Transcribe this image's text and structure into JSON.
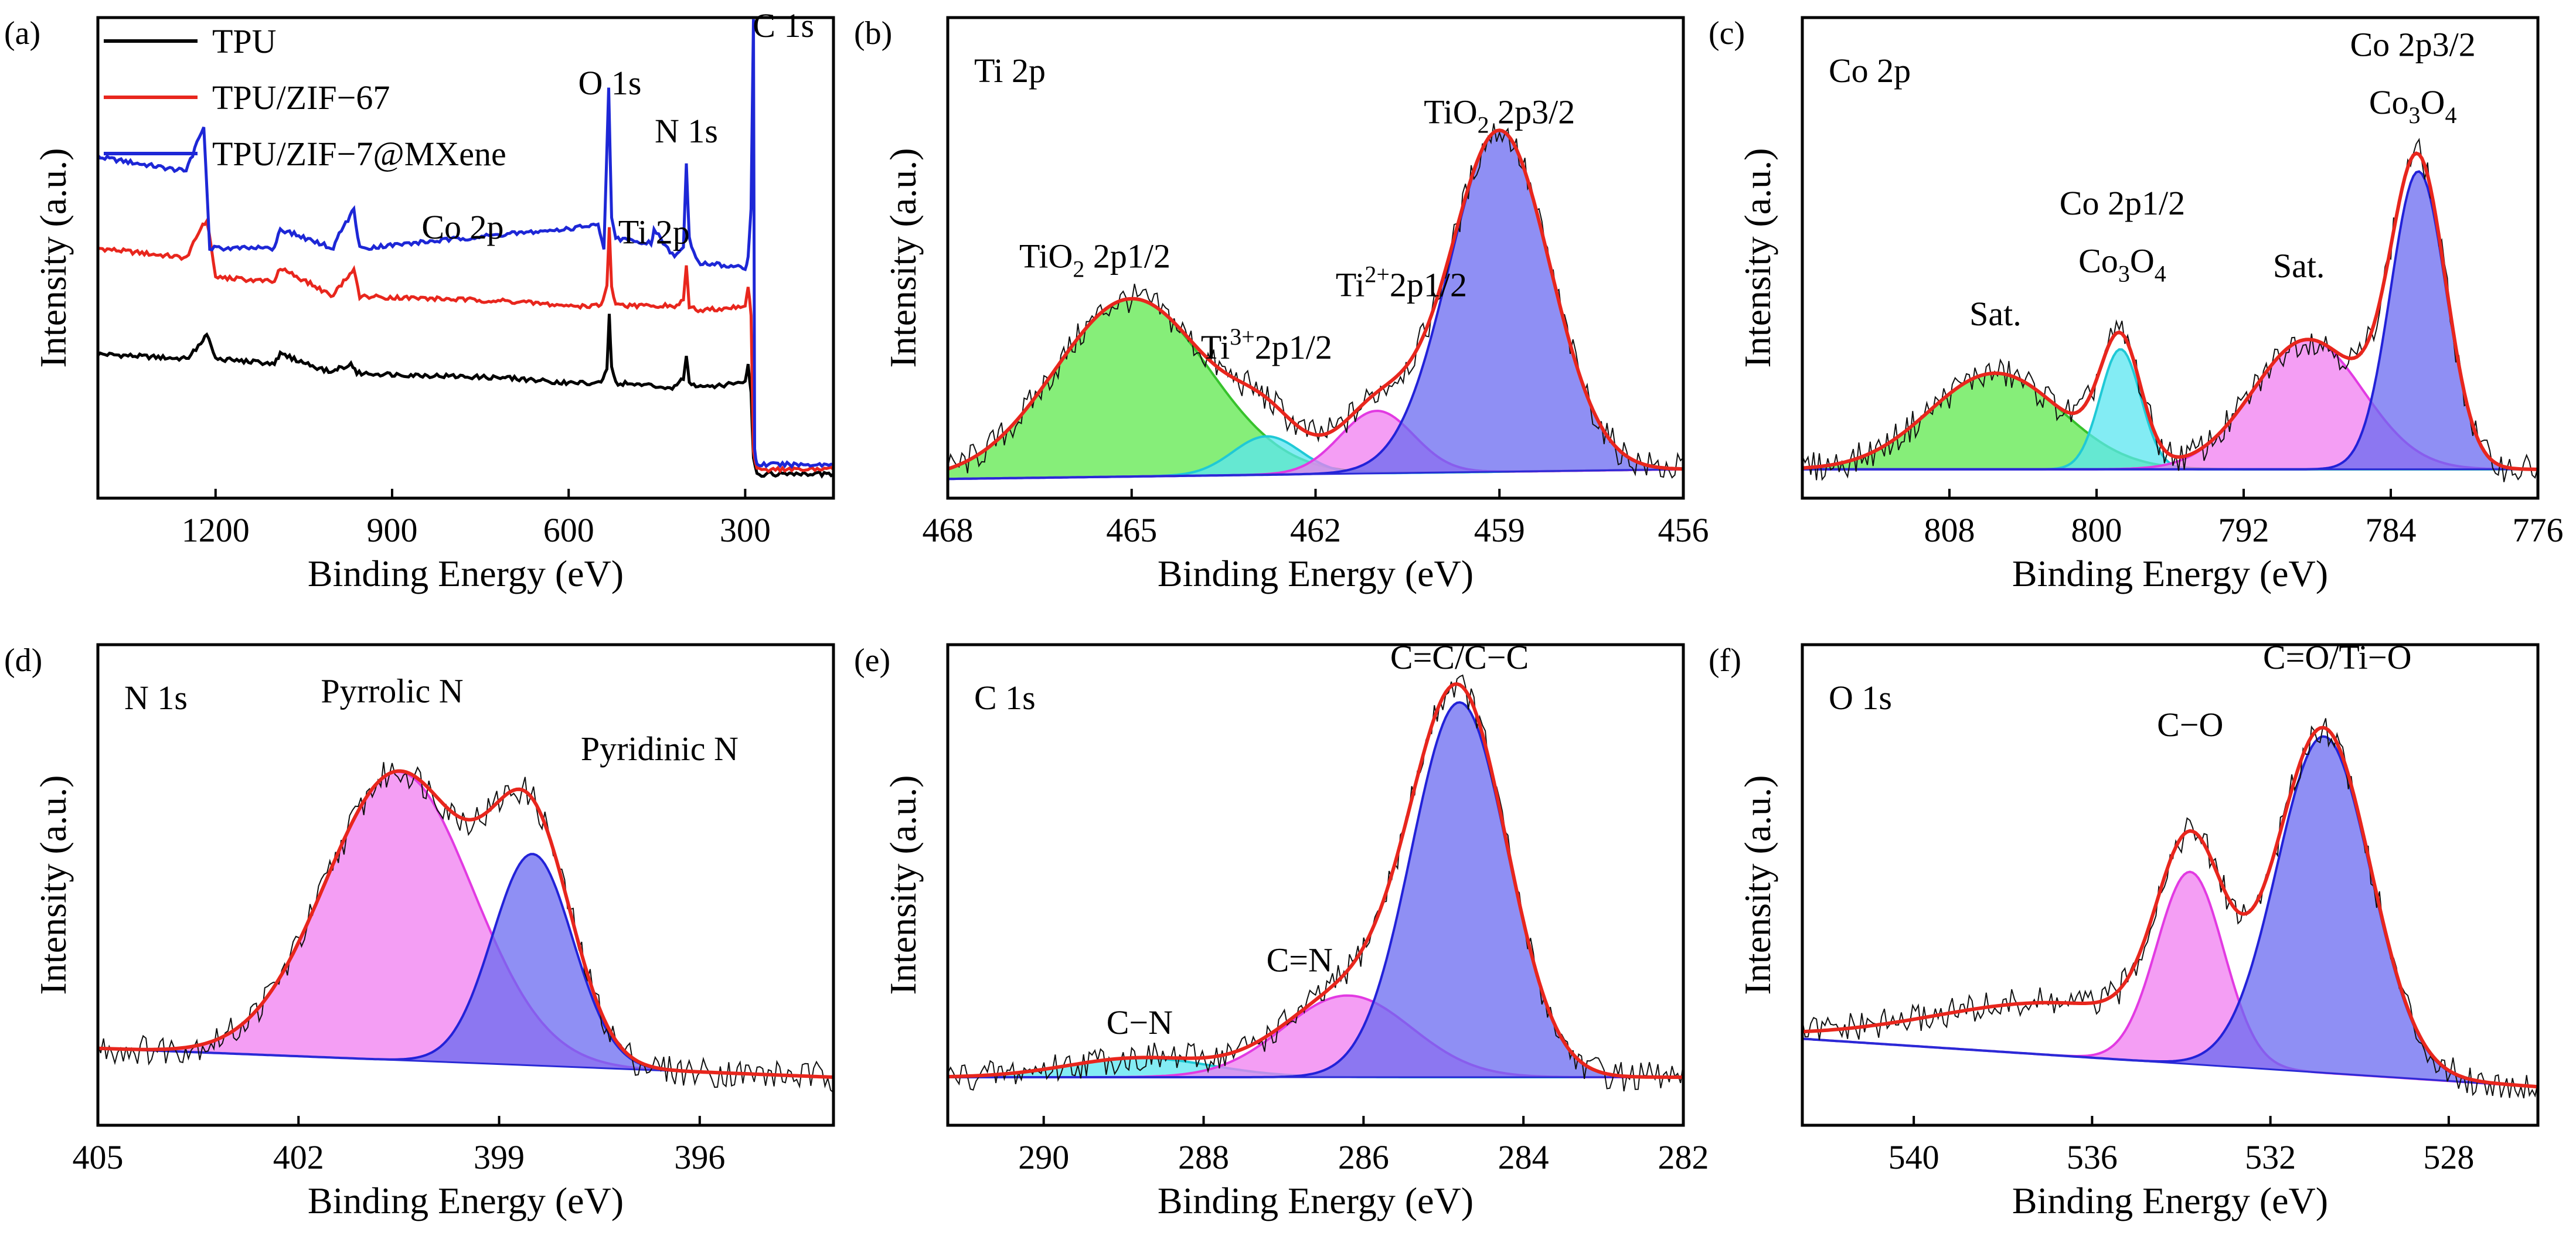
{
  "figure": {
    "description_free": true
  },
  "chart_data": [
    {
      "id": "a",
      "type": "line",
      "panel_label": "(a)",
      "xlabel": "Binding Energy (eV)",
      "ylabel": "Intensity (a.u.)",
      "xlim": [
        1400,
        150
      ],
      "ylim": [
        0,
        100
      ],
      "xticks": [
        1200,
        900,
        600,
        300
      ],
      "xtick_labels": [
        "1200",
        "900",
        "600",
        "300"
      ],
      "legend": {
        "placement": "top-left",
        "entries": [
          {
            "label": "TPU",
            "color": "#000000"
          },
          {
            "label": "TPU/ZIF−67",
            "color": "#e8261d"
          },
          {
            "label": "TPU/ZIF−7@MXene",
            "color": "#1d27d6"
          }
        ]
      },
      "annotations": [
        {
          "text": "Co 2p",
          "x": 780,
          "y": 54
        },
        {
          "text": "O 1s",
          "x": 530,
          "y": 84
        },
        {
          "text": "Ti 2p",
          "x": 455,
          "y": 53
        },
        {
          "text": "N 1s",
          "x": 400,
          "y": 74
        },
        {
          "text": "C 1s",
          "x": 235,
          "y": 96
        }
      ],
      "series": [
        {
          "name": "TPU",
          "color": "#000000",
          "x": [
            1400,
            1250,
            1225,
            1215,
            1200,
            1100,
            1090,
            1000,
            990,
            970,
            960,
            700,
            600,
            545,
            535,
            531,
            527,
            520,
            420,
            405,
            400,
            395,
            380,
            300,
            295,
            290,
            286,
            280,
            150
          ],
          "y": [
            30,
            29,
            32,
            34,
            29,
            28,
            30,
            26,
            27,
            28,
            26,
            25,
            24,
            24,
            27,
            38,
            27,
            24,
            23,
            25,
            30,
            24,
            23,
            24,
            28,
            22,
            8,
            5,
            5
          ]
        },
        {
          "name": "TPU/ZIF−67",
          "color": "#e8261d",
          "x": [
            1400,
            1250,
            1225,
            1215,
            1200,
            1100,
            1090,
            1000,
            990,
            975,
            965,
            955,
            700,
            600,
            545,
            535,
            531,
            527,
            520,
            420,
            405,
            400,
            395,
            380,
            300,
            295,
            290,
            286,
            280,
            150
          ],
          "y": [
            52,
            50,
            56,
            58,
            46,
            45,
            48,
            42,
            44,
            46,
            48,
            42,
            41,
            40,
            40,
            44,
            56,
            44,
            40,
            40,
            41,
            48,
            40,
            39,
            40,
            44,
            38,
            10,
            6,
            6
          ]
        },
        {
          "name": "TPU/ZIF−7@MXene",
          "color": "#1d27d6",
          "x": [
            1400,
            1250,
            1228,
            1220,
            1210,
            1100,
            1090,
            1000,
            990,
            975,
            965,
            955,
            700,
            600,
            550,
            540,
            532,
            527,
            520,
            460,
            455,
            420,
            405,
            400,
            395,
            380,
            300,
            295,
            290,
            286,
            284,
            280,
            150
          ],
          "y": [
            71,
            68,
            75,
            77,
            52,
            52,
            56,
            52,
            55,
            58,
            60,
            52,
            55,
            56,
            57,
            52,
            85,
            58,
            54,
            53,
            56,
            50,
            52,
            70,
            54,
            49,
            48,
            50,
            60,
            100,
            10,
            7,
            7
          ]
        }
      ]
    },
    {
      "id": "b",
      "type": "area",
      "panel_label": "(b)",
      "title": "Ti 2p",
      "xlabel": "Binding Energy (eV)",
      "ylabel": "Intensity (a.u.)",
      "xlim": [
        468,
        456
      ],
      "ylim": [
        0,
        100
      ],
      "xticks": [
        468,
        465,
        462,
        459,
        456
      ],
      "xtick_labels": [
        "468",
        "465",
        "462",
        "459",
        "456"
      ],
      "baseline": {
        "at_xmin": 4,
        "at_xmax": 6
      },
      "components": [
        {
          "name": "TiO2 2p1/2",
          "center": 465.0,
          "sigma": 1.25,
          "height": 37,
          "fill": "#5ee84c",
          "edge": "#37c22c"
        },
        {
          "name": "Ti3+ 2p1/2",
          "center": 462.8,
          "sigma": 0.55,
          "height": 8,
          "fill": "#59e6f0",
          "edge": "#1fc9d6"
        },
        {
          "name": "Ti2+ 2p1/2",
          "center": 461.0,
          "sigma": 0.6,
          "height": 13,
          "fill": "#f07ef0",
          "edge": "#e23ae2"
        },
        {
          "name": "TiO2 2p3/2",
          "center": 459.0,
          "sigma": 0.82,
          "height": 71,
          "fill": "#6a6af0",
          "edge": "#2222d8"
        }
      ],
      "annotations": [
        {
          "text": "TiO",
          "sub": "2",
          "suffix": " 2p3/2",
          "x": 459.0,
          "y": 78
        },
        {
          "text": "TiO",
          "sub": "2",
          "suffix": " 2p1/2",
          "x": 465.6,
          "y": 48
        },
        {
          "text": "Ti",
          "sup": "3+",
          "suffix": "2p1/2",
          "x": 462.8,
          "y": 29
        },
        {
          "text": "Ti",
          "sup": "2+",
          "suffix": "2p1/2",
          "x": 460.6,
          "y": 42
        }
      ]
    },
    {
      "id": "c",
      "type": "area",
      "panel_label": "(c)",
      "title": "Co 2p",
      "xlabel": "Binding Energy (eV)",
      "ylabel": "Intensity (a.u.)",
      "xlim": [
        816,
        776
      ],
      "ylim": [
        0,
        100
      ],
      "xticks": [
        808,
        800,
        792,
        784,
        776
      ],
      "xtick_labels": [
        "808",
        "800",
        "792",
        "784",
        "776"
      ],
      "baseline": {
        "at_xmin": 6,
        "at_xmax": 6
      },
      "components": [
        {
          "name": "Sat.",
          "center": 805.5,
          "sigma": 3.6,
          "height": 20,
          "fill": "#5ee84c",
          "edge": "#37c22c"
        },
        {
          "name": "Co 2p1/2 Co3O4",
          "center": 798.7,
          "sigma": 1.1,
          "height": 25,
          "fill": "#59e6f0",
          "edge": "#1fc9d6"
        },
        {
          "name": "Sat.",
          "center": 788.5,
          "sigma": 3.0,
          "height": 27,
          "fill": "#f07ef0",
          "edge": "#e23ae2"
        },
        {
          "name": "Co 2p3/2 Co3O4",
          "center": 782.5,
          "sigma": 1.5,
          "height": 62,
          "fill": "#6a6af0",
          "edge": "#2222d8"
        }
      ],
      "annotations": [
        {
          "text": "Co 2p3/2",
          "x": 782.8,
          "y": 92
        },
        {
          "text": "Co",
          "sub": "3",
          "mid": "O",
          "sub2": "4",
          "x": 782.8,
          "y": 80
        },
        {
          "text": "Co 2p1/2",
          "x": 798.6,
          "y": 59
        },
        {
          "text": "Co",
          "sub": "3",
          "mid": "O",
          "sub2": "4",
          "x": 798.6,
          "y": 47
        },
        {
          "text": "Sat.",
          "x": 805.5,
          "y": 36
        },
        {
          "text": "Sat.",
          "x": 789.0,
          "y": 46
        }
      ]
    },
    {
      "id": "d",
      "type": "area",
      "panel_label": "(d)",
      "title": "N 1s",
      "xlabel": "Binding Energy (eV)",
      "ylabel": "Intensity (a.u.)",
      "xlim": [
        405,
        394
      ],
      "ylim": [
        0,
        100
      ],
      "xticks": [
        405,
        402,
        399,
        396
      ],
      "xtick_labels": [
        "405",
        "402",
        "399",
        "396"
      ],
      "baseline": {
        "at_xmin": 16,
        "at_xmax": 10
      },
      "components": [
        {
          "name": "Pyrrolic N",
          "center": 400.5,
          "sigma": 1.1,
          "height": 60,
          "fill": "#f07ef0",
          "edge": "#e23ae2"
        },
        {
          "name": "Pyridinic N",
          "center": 398.5,
          "sigma": 0.6,
          "height": 44,
          "fill": "#6a6af0",
          "edge": "#2222d8"
        }
      ],
      "annotations": [
        {
          "text": "Pyrrolic N",
          "x": 400.6,
          "y": 88
        },
        {
          "text": "Pyridinic N",
          "x": 396.6,
          "y": 76
        }
      ]
    },
    {
      "id": "e",
      "type": "area",
      "panel_label": "(e)",
      "title": "C 1s",
      "xlabel": "Binding Energy (eV)",
      "ylabel": "Intensity (a.u.)",
      "xlim": [
        291.2,
        282
      ],
      "ylim": [
        0,
        100
      ],
      "xticks": [
        290,
        288,
        286,
        284,
        282
      ],
      "xtick_labels": [
        "290",
        "288",
        "286",
        "284",
        "282"
      ],
      "baseline": {
        "at_xmin": 10,
        "at_xmax": 10
      },
      "components": [
        {
          "name": "C−N",
          "center": 288.8,
          "sigma": 0.9,
          "height": 4,
          "fill": "#59e6f0",
          "edge": "#1fc9d6"
        },
        {
          "name": "C=N",
          "center": 286.2,
          "sigma": 0.8,
          "height": 17,
          "fill": "#f07ef0",
          "edge": "#e23ae2"
        },
        {
          "name": "C=C/C−C",
          "center": 284.8,
          "sigma": 0.6,
          "height": 78,
          "fill": "#6a6af0",
          "edge": "#2222d8"
        }
      ],
      "annotations": [
        {
          "text": "C=C/C−C",
          "x": 284.8,
          "y": 95
        },
        {
          "text": "C=N",
          "x": 286.8,
          "y": 32
        },
        {
          "text": "C−N",
          "x": 288.8,
          "y": 19
        }
      ]
    },
    {
      "id": "f",
      "type": "area",
      "panel_label": "(f)",
      "title": "O 1s",
      "xlabel": "Binding Energy (eV)",
      "ylabel": "Intensity (a.u.)",
      "xlim": [
        542.5,
        526
      ],
      "ylim": [
        0,
        100
      ],
      "xticks": [
        540,
        536,
        532,
        528
      ],
      "xtick_labels": [
        "540",
        "536",
        "532",
        "528"
      ],
      "baseline": {
        "at_xmin": 18,
        "at_xmax": 8
      },
      "components": [
        {
          "name": "C−O",
          "center": 533.8,
          "sigma": 0.75,
          "height": 40,
          "fill": "#f07ef0",
          "edge": "#e23ae2"
        },
        {
          "name": "C=O/Ti−O",
          "center": 530.8,
          "sigma": 1.05,
          "height": 70,
          "fill": "#6a6af0",
          "edge": "#2222d8"
        },
        {
          "name": "shoulder",
          "center": 536.5,
          "sigma": 3.0,
          "height": 11,
          "fill": "#6a6af0",
          "edge": "#2222d8",
          "hidden_fill": true
        }
      ],
      "annotations": [
        {
          "text": "C=O/Ti−O",
          "x": 530.5,
          "y": 95
        },
        {
          "text": "C−O",
          "x": 533.8,
          "y": 81
        }
      ]
    }
  ]
}
